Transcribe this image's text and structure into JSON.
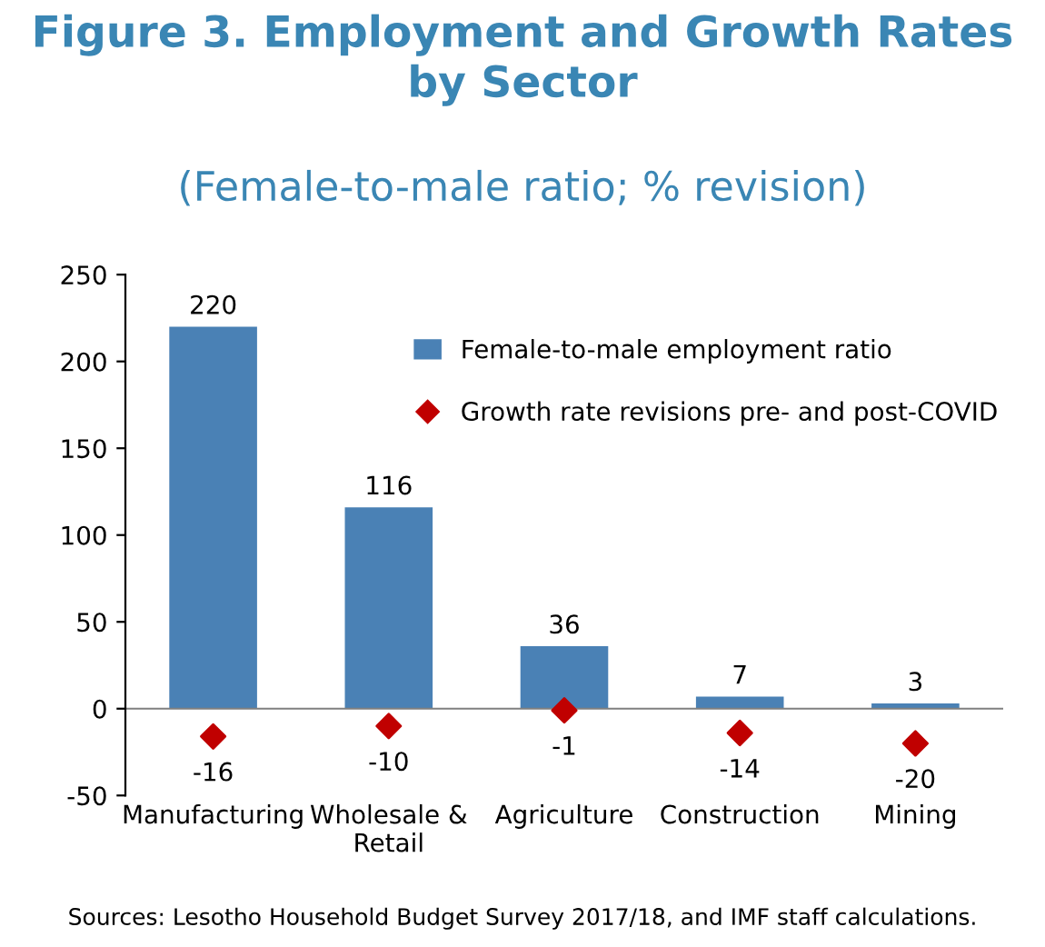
{
  "chart_data": {
    "type": "bar",
    "title": "Figure 3. Employment and Growth Rates\nby Sector",
    "subtitle": "(Female-to-male ratio; % revision)",
    "categories": [
      "Manufacturing",
      "Wholesale &\nRetail",
      "Agriculture",
      "Construction",
      "Mining"
    ],
    "series": [
      {
        "name": "Female-to-male employment ratio",
        "color": "#4a81b5",
        "values": [
          220,
          116,
          36,
          7,
          3
        ]
      },
      {
        "name": "Growth rate revisions pre- and post-COVID",
        "type": "scatter",
        "color": "#c00000",
        "values": [
          -16,
          -10,
          -1,
          -14,
          -20
        ]
      }
    ],
    "ylim": [
      -50,
      250
    ],
    "yticks": [
      -50,
      0,
      50,
      100,
      150,
      200,
      250
    ],
    "data_labels": true,
    "legend": "top right",
    "marker": "diamond",
    "grid": false,
    "ref_lines": [
      {
        "axis": "y",
        "value": 0,
        "color": "#808080"
      }
    ],
    "annotations": [
      "Sources: Lesotho Household Budget Survey 2017/18, and IMF staff calculations."
    ]
  }
}
